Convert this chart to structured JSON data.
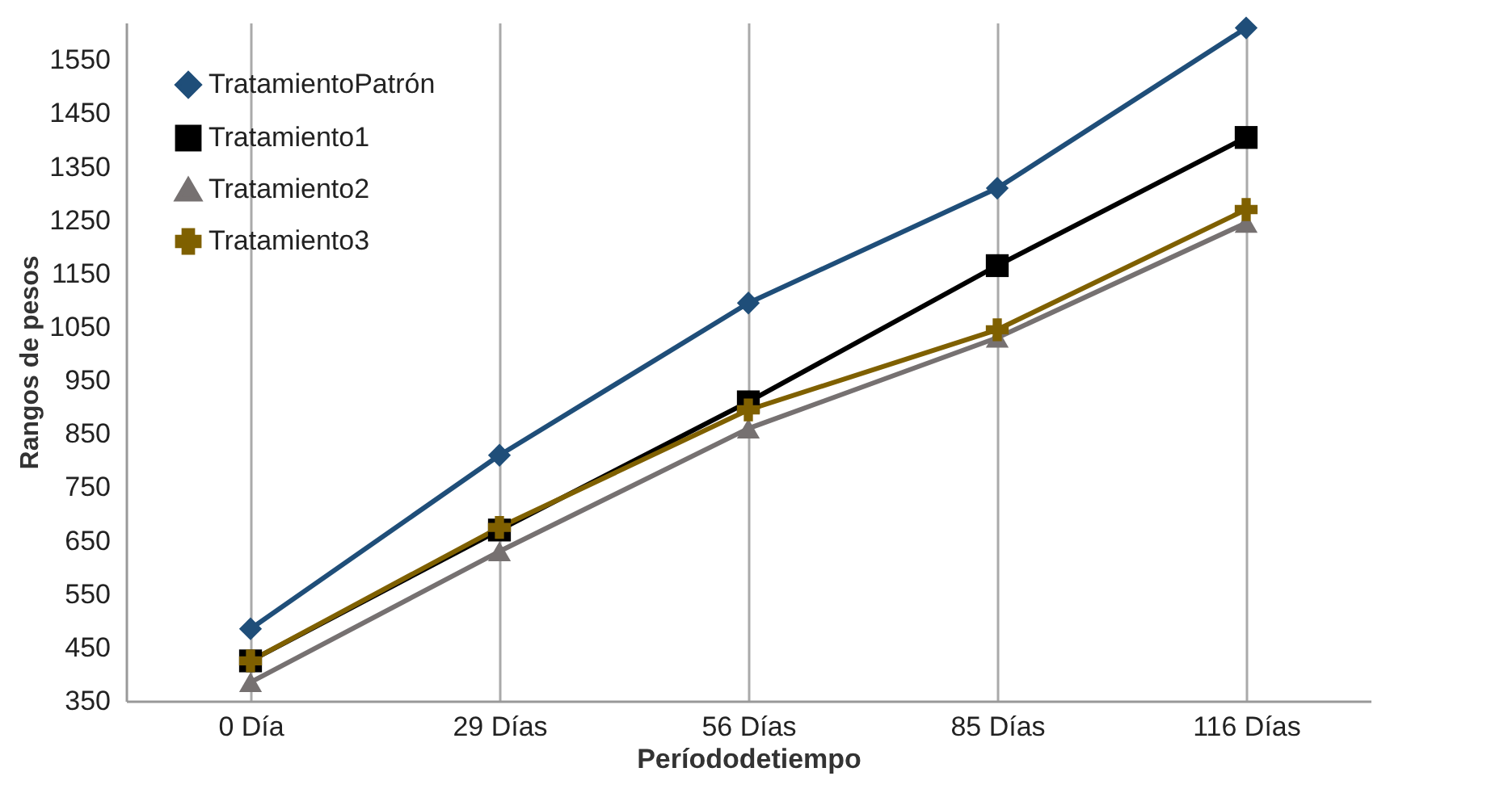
{
  "chart_data": {
    "type": "line",
    "xlabel": "Períododetiempo",
    "ylabel": "Rangos de pesos",
    "categories": [
      "0 Día",
      "29 Días",
      "56 Días",
      "85 Días",
      "116 Días"
    ],
    "series": [
      {
        "name": "TratamientoPatrón",
        "color": "#1f4e79",
        "marker": "diamond",
        "values": [
          485,
          810,
          1095,
          1310,
          1610
        ]
      },
      {
        "name": "Tratamiento1",
        "color": "#000000",
        "marker": "square",
        "values": [
          425,
          670,
          910,
          1165,
          1405
        ]
      },
      {
        "name": "Tratamiento2",
        "color": "#767171",
        "marker": "triangle",
        "values": [
          385,
          630,
          860,
          1030,
          1245
        ]
      },
      {
        "name": "Tratamiento3",
        "color": "#7f6000",
        "marker": "cross",
        "values": [
          425,
          675,
          895,
          1045,
          1270
        ]
      }
    ],
    "ylim": [
      350,
      1620
    ],
    "yticks": [
      350,
      450,
      550,
      650,
      750,
      850,
      950,
      1050,
      1150,
      1250,
      1350,
      1450,
      1550
    ],
    "grid": "x",
    "legend": "top left",
    "line_style": "solid"
  }
}
